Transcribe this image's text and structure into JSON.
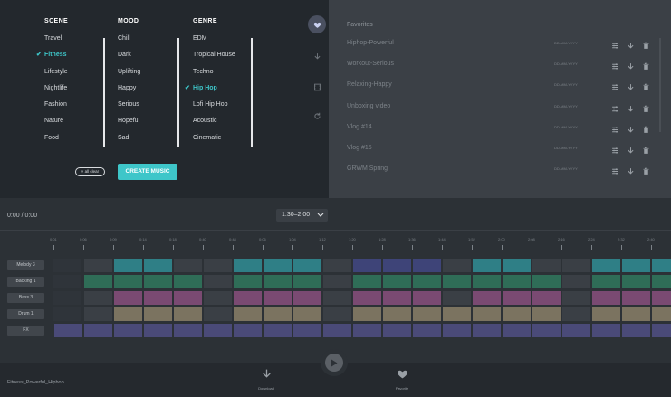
{
  "selector": {
    "columns": [
      {
        "heading": "SCENE",
        "items": [
          "Travel",
          "Fitness",
          "Lifestyle",
          "Nightlife",
          "Fashion",
          "Nature",
          "Food"
        ],
        "selected": 1
      },
      {
        "heading": "MOOD",
        "items": [
          "Chill",
          "Dark",
          "Uplifting",
          "Happy",
          "Serious",
          "Hopeful",
          "Sad"
        ],
        "selected": -1
      },
      {
        "heading": "GENRE",
        "items": [
          "EDM",
          "Tropical House",
          "Techno",
          "Hip Hop",
          "Lofi Hip Hop",
          "Acoustic",
          "Cinematic"
        ],
        "selected": 3
      }
    ],
    "clear_label": "× all clear",
    "create_label": "CREATE MUSIC",
    "check_glyph": "✔"
  },
  "rail": {
    "icons": [
      "heart-icon",
      "download-icon",
      "film-icon",
      "refresh-icon"
    ],
    "active": 0
  },
  "favorites": {
    "title": "Favorites",
    "date_placeholder": "DD-MM-YYYY",
    "items": [
      "Hiphop-Powerful",
      "Workout-Serious",
      "Relaxing-Happy",
      "Unboxing video",
      "Vlog #14",
      "Vlog #15",
      "GRWM Spring"
    ]
  },
  "timeline": {
    "timecode": "0:00 / 0:00",
    "range": "1:30–2:00",
    "ticks": [
      "0:01",
      "0:06",
      "0:09",
      "0:14",
      "0:18",
      "0:40",
      "0:48",
      "0:06",
      "1:04",
      "1:12",
      "1:20",
      "1:28",
      "1:36",
      "1:44",
      "1:52",
      "2:00",
      "2:08",
      "2:16",
      "2:24",
      "2:32",
      "2:40"
    ],
    "tracks": [
      {
        "name": "Melody 3",
        "color": "#2f7f86",
        "pattern": [
          0,
          0,
          1,
          1,
          0,
          0,
          1,
          1,
          1,
          0,
          2,
          2,
          2,
          0,
          1,
          1,
          0,
          0,
          1,
          1,
          1
        ]
      },
      {
        "name": "Backing 1",
        "color": "#2f6d57",
        "pattern": [
          0,
          1,
          1,
          1,
          1,
          0,
          1,
          1,
          1,
          0,
          1,
          1,
          1,
          1,
          1,
          1,
          1,
          0,
          1,
          1,
          1
        ]
      },
      {
        "name": "Bass 3",
        "color": "#7a4a72",
        "pattern": [
          0,
          0,
          1,
          1,
          1,
          0,
          1,
          1,
          1,
          0,
          1,
          1,
          1,
          0,
          1,
          1,
          1,
          0,
          1,
          1,
          1
        ]
      },
      {
        "name": "Drum 1",
        "color": "#7b7360",
        "pattern": [
          0,
          0,
          1,
          1,
          1,
          0,
          1,
          1,
          1,
          0,
          1,
          1,
          1,
          1,
          1,
          1,
          1,
          0,
          1,
          1,
          1
        ]
      },
      {
        "name": "FX",
        "color": "#4a4a78",
        "pattern": [
          1,
          1,
          1,
          1,
          1,
          1,
          1,
          1,
          1,
          1,
          1,
          1,
          1,
          1,
          1,
          1,
          1,
          1,
          1,
          1,
          1
        ]
      }
    ],
    "empty_color": "#3a3f45",
    "alt_color": "#3e4478"
  },
  "bottombar": {
    "song_name": "Fitness_Powerful_Hiphop",
    "download_label": "Download",
    "favorite_label": "Favorite"
  }
}
